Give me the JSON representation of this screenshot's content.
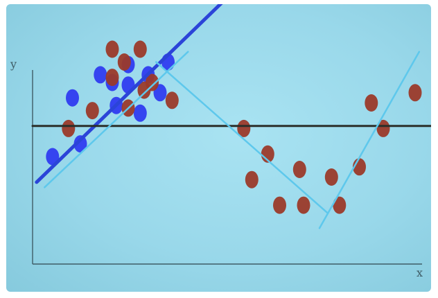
{
  "chart_data": {
    "type": "scatter",
    "xlabel": "x",
    "ylabel": "y",
    "xlim": [
      0,
      100
    ],
    "ylim": [
      0,
      100
    ],
    "grid": false,
    "colors": {
      "background": "#9fdcee",
      "axes": "#3f5c66",
      "baseline": "#2b2f2a",
      "blue_points": "#2f3cf0",
      "red_points": "#9b3a2a",
      "global_fit": "#2b44d8",
      "local_fits": "#5ec8ec"
    },
    "series": [
      {
        "color": "blue",
        "points": [
          [
            5,
            42
          ],
          [
            10,
            65
          ],
          [
            12,
            47
          ],
          [
            17,
            74
          ],
          [
            20,
            71
          ],
          [
            21,
            62
          ],
          [
            24,
            78
          ],
          [
            24,
            70
          ],
          [
            27,
            59
          ],
          [
            29,
            74
          ],
          [
            32,
            67
          ],
          [
            34,
            79
          ]
        ]
      },
      {
        "color": "red",
        "points": [
          [
            9,
            53
          ],
          [
            15,
            60
          ],
          [
            20,
            84
          ],
          [
            20,
            73
          ],
          [
            23,
            79
          ],
          [
            24,
            61
          ],
          [
            27,
            84
          ],
          [
            28,
            68
          ],
          [
            30,
            71
          ],
          [
            35,
            64
          ],
          [
            53,
            53
          ],
          [
            55,
            33
          ],
          [
            59,
            43
          ],
          [
            62,
            23
          ],
          [
            67,
            37
          ],
          [
            68,
            23
          ],
          [
            75,
            34
          ],
          [
            77,
            23
          ],
          [
            82,
            38
          ],
          [
            85,
            63
          ],
          [
            88,
            53
          ],
          [
            96,
            67
          ]
        ]
      }
    ],
    "lines": [
      {
        "kind": "global_fit",
        "from": [
          1,
          32
        ],
        "to": [
          54,
          112
        ]
      },
      {
        "kind": "horizontal",
        "from": [
          0,
          54
        ],
        "to": [
          100,
          54
        ]
      },
      {
        "kind": "local_fit",
        "from": [
          3,
          30
        ],
        "to": [
          39,
          83
        ]
      },
      {
        "kind": "local_fit",
        "from": [
          31,
          79
        ],
        "to": [
          74,
          20
        ]
      },
      {
        "kind": "local_fit",
        "from": [
          72,
          14
        ],
        "to": [
          97,
          83
        ]
      }
    ]
  }
}
